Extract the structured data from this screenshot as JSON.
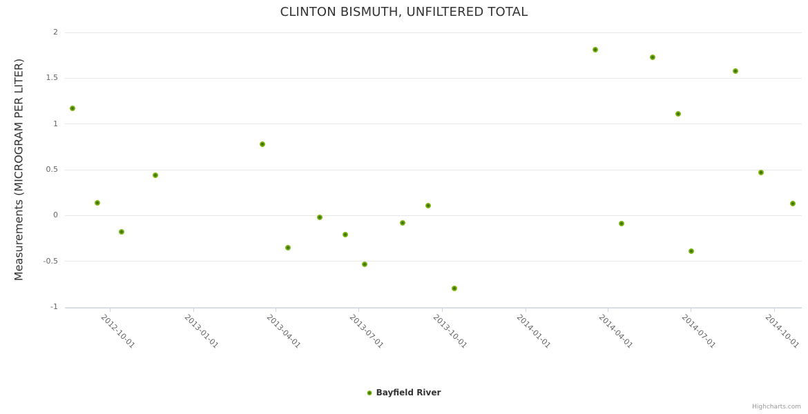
{
  "title": "CLINTON BISMUTH, UNFILTERED TOTAL",
  "legend": {
    "label": "Bayfield River",
    "marker_icon": "circle-marker-icon"
  },
  "credits": "Highcharts.com",
  "colors": {
    "title_text": "#333333",
    "axis_label_text": "#666666",
    "grid_line": "#e6e6e6",
    "axis_line": "#ccd6eb",
    "marker_outer": "#86be17",
    "marker_inner": "#3e7308",
    "legend_text": "#333333",
    "credits_text": "#999999"
  },
  "chart_data": {
    "type": "scatter",
    "title": "CLINTON BISMUTH, UNFILTERED TOTAL",
    "xlabel": "",
    "ylabel": "Measurements (MICROGRAM PER LITER)",
    "ylim": [
      -1,
      2
    ],
    "y_ticks": [
      2,
      1.5,
      1,
      0.5,
      0,
      -0.5,
      -1
    ],
    "xlim": [
      "2012-08-13",
      "2014-10-31"
    ],
    "x_ticks": [
      "2012-10-01",
      "2013-01-01",
      "2013-04-01",
      "2013-07-01",
      "2013-10-01",
      "2014-01-01",
      "2014-04-01",
      "2014-07-01",
      "2014-10-01"
    ],
    "grid": "horizontal-only",
    "legend_position": "bottom-center",
    "series": [
      {
        "name": "Bayfield River",
        "points": [
          {
            "x": "2012-08-21",
            "y": 1.17
          },
          {
            "x": "2012-09-18",
            "y": 0.14
          },
          {
            "x": "2012-10-14",
            "y": -0.18
          },
          {
            "x": "2012-11-20",
            "y": 0.44
          },
          {
            "x": "2013-03-18",
            "y": 0.78
          },
          {
            "x": "2013-04-15",
            "y": -0.35
          },
          {
            "x": "2013-05-20",
            "y": -0.02
          },
          {
            "x": "2013-06-17",
            "y": -0.21
          },
          {
            "x": "2013-07-08",
            "y": -0.53
          },
          {
            "x": "2013-08-19",
            "y": -0.08
          },
          {
            "x": "2013-09-16",
            "y": 0.11
          },
          {
            "x": "2013-10-15",
            "y": -0.8
          },
          {
            "x": "2014-03-18",
            "y": 1.81
          },
          {
            "x": "2014-04-16",
            "y": -0.09
          },
          {
            "x": "2014-05-20",
            "y": 1.73
          },
          {
            "x": "2014-06-17",
            "y": 1.11
          },
          {
            "x": "2014-07-02",
            "y": -0.39
          },
          {
            "x": "2014-08-19",
            "y": 1.58
          },
          {
            "x": "2014-09-16",
            "y": 0.47
          },
          {
            "x": "2014-10-21",
            "y": 0.13
          }
        ]
      }
    ]
  }
}
